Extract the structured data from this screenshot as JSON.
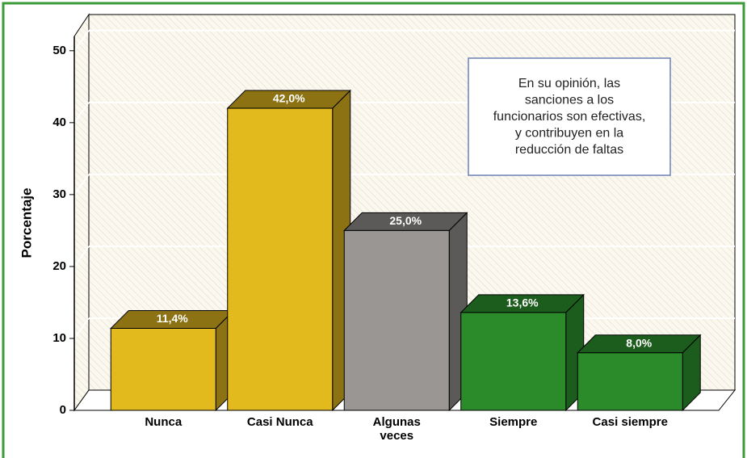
{
  "chart_data": {
    "type": "bar3d",
    "y_label": "Porcentaje",
    "annotation": [
      "En su opinión, las",
      "sanciones a los",
      "funcionarios son efectivas,",
      "y contribuyen en la",
      "reducción de faltas"
    ],
    "categories": [
      "Nunca",
      "Casi Nunca",
      "Algunas veces",
      "Siempre",
      "Casi siempre"
    ],
    "values": [
      11.4,
      42.0,
      25.0,
      13.6,
      8.0
    ],
    "value_labels": [
      "11,4%",
      "42,0%",
      "25,0%",
      "13,6%",
      "8,0%"
    ],
    "colors": [
      "#e2ba1e",
      "#e2ba1e",
      "#9a9694",
      "#2b8b2b",
      "#2b8b2b"
    ],
    "side_colors": [
      "#8c7212",
      "#8c7212",
      "#5c5a58",
      "#1c5c1c",
      "#1c5c1c"
    ],
    "ylim": [
      0,
      52
    ],
    "yticks": [
      0,
      10,
      20,
      30,
      40,
      50
    ],
    "grid": true
  }
}
